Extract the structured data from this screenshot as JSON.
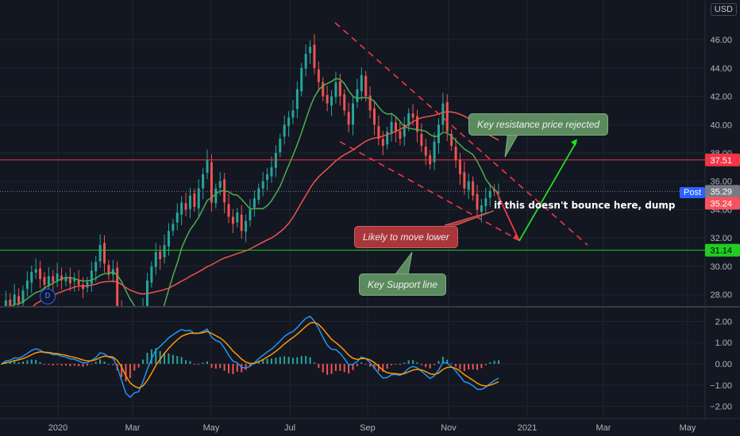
{
  "currency": "USD",
  "post_label": "Post",
  "d_badge": "D",
  "colors": {
    "background": "#131722",
    "grid": "#1f2430",
    "up": "#26a69a",
    "down": "#ef5350",
    "ma_short": "#4caf50",
    "ma_long": "#ef5350",
    "macd": "#2196f3",
    "signal": "#ff9800",
    "resistance": "#f23645",
    "support": "#4caf50",
    "projection_down": "#f23645",
    "projection_up": "#22dd22",
    "last_price_tag": "#787b86"
  },
  "chart_data": [
    {
      "type": "candlestick",
      "x_tick_labels": [
        "2020",
        "Mar",
        "May",
        "Jul",
        "Sep",
        "Nov",
        "2021",
        "Mar",
        "May"
      ],
      "y_tick_labels": [
        "28.00",
        "30.00",
        "32.00",
        "34.00",
        "36.00",
        "38.00",
        "40.00",
        "42.00",
        "44.00",
        "46.00"
      ],
      "ylim": [
        27.2,
        48.8
      ],
      "horizontal_levels": [
        {
          "label": "37.51",
          "value": 37.51,
          "color": "#f23645",
          "text_color": "#ffffff"
        },
        {
          "label": "31.14",
          "value": 31.14,
          "color": "#22cc22",
          "text_color": "#000000"
        },
        {
          "label": "35.29",
          "value": 35.29,
          "color": "#787b86",
          "text_color": "#ffffff"
        },
        {
          "label": "35.24",
          "value": 35.24,
          "color": "#f7525f",
          "text_color": "#ffffff"
        }
      ],
      "series": [
        {
          "type": "candles",
          "closes": [
            26.5,
            27.6,
            27.2,
            28.0,
            27.4,
            28.3,
            29.0,
            29.6,
            29.8,
            29.1,
            28.7,
            29.3,
            28.9,
            29.5,
            29.0,
            29.2,
            28.8,
            29.1,
            28.7,
            28.4,
            28.9,
            29.7,
            30.3,
            31.5,
            30.2,
            29.4,
            29.8,
            27.0,
            24.0,
            22.0,
            23.0,
            25.0,
            24.0,
            27.0,
            29.0,
            30.0,
            31.0,
            30.5,
            31.5,
            32.5,
            33.0,
            33.8,
            34.5,
            34.0,
            35.0,
            34.2,
            35.5,
            36.5,
            37.5,
            34.5,
            35.5,
            36.0,
            34.5,
            33.5,
            33.0,
            33.8,
            32.5,
            33.2,
            34.0,
            34.8,
            35.5,
            36.0,
            36.5,
            37.0,
            38.0,
            39.0,
            40.0,
            40.5,
            41.0,
            42.5,
            44.0,
            45.0,
            45.5,
            44.0,
            43.0,
            42.0,
            41.5,
            42.0,
            43.0,
            42.0,
            41.0,
            40.0,
            41.5,
            42.5,
            43.5,
            42.0,
            41.0,
            40.0,
            39.0,
            38.5,
            39.5,
            40.2,
            39.5,
            39.0,
            40.0,
            40.8,
            40.5,
            39.5,
            38.5,
            37.8,
            37.2,
            38.8,
            40.0,
            41.5,
            39.5,
            38.5,
            37.5,
            36.5,
            35.5,
            36.0,
            35.0,
            34.0,
            34.3,
            34.8,
            35.3,
            35.3,
            35.2
          ]
        },
        {
          "type": "line",
          "name": "",
          "color": "#4caf50"
        },
        {
          "type": "line",
          "name": "",
          "color": "#ef5350"
        }
      ]
    },
    {
      "type": "macd",
      "y_tick_labels": [
        "2.00",
        "1.00",
        "0.00",
        "−1.00",
        "−2.00"
      ],
      "ylim": [
        -2.3,
        2.3
      ],
      "series": [
        {
          "name": "",
          "type": "line",
          "color": "#2196f3"
        },
        {
          "name": "",
          "type": "line",
          "color": "#ff9800"
        },
        {
          "name": "",
          "type": "histogram"
        }
      ]
    }
  ],
  "annotations": {
    "resistance": "Key resistance price rejected",
    "lower": "Likely to move lower",
    "support": "Key Support line",
    "dump": "if this doesn't bounce here, dump"
  }
}
